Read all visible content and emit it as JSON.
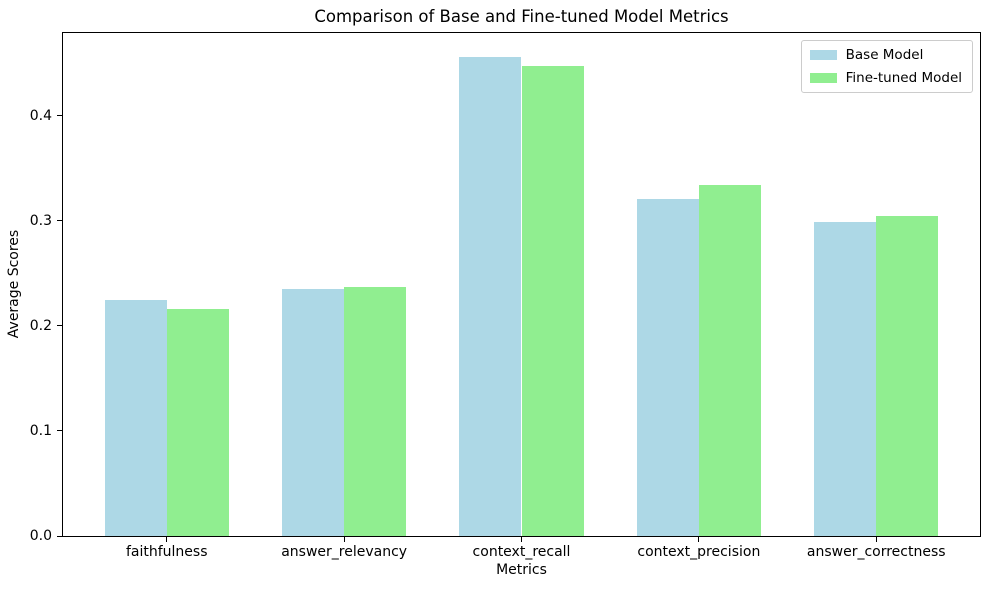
{
  "title": "Comparison of Base and Fine-tuned Model Metrics",
  "chart_data": {
    "type": "bar",
    "title": "Comparison of Base and Fine-tuned Model Metrics",
    "categories": [
      "faithfulness",
      "answer_relevancy",
      "context_recall",
      "context_precision",
      "answer_correctness"
    ],
    "series": [
      {
        "name": "Base Model",
        "color": "#ADD8E6",
        "values": [
          0.225,
          0.235,
          0.456,
          0.321,
          0.299
        ]
      },
      {
        "name": "Fine-tuned Model",
        "color": "#90EE90",
        "values": [
          0.216,
          0.237,
          0.447,
          0.334,
          0.305
        ]
      }
    ],
    "xlabel": "Metrics",
    "ylabel": "Average Scores",
    "ylim": [
      0,
      0.4788
    ],
    "xlim": [
      -0.585,
      4.585
    ],
    "yticks": [
      0.0,
      0.1,
      0.2,
      0.3,
      0.4
    ],
    "bar_width": 0.35,
    "grid": false,
    "legend_position": "upper right"
  }
}
